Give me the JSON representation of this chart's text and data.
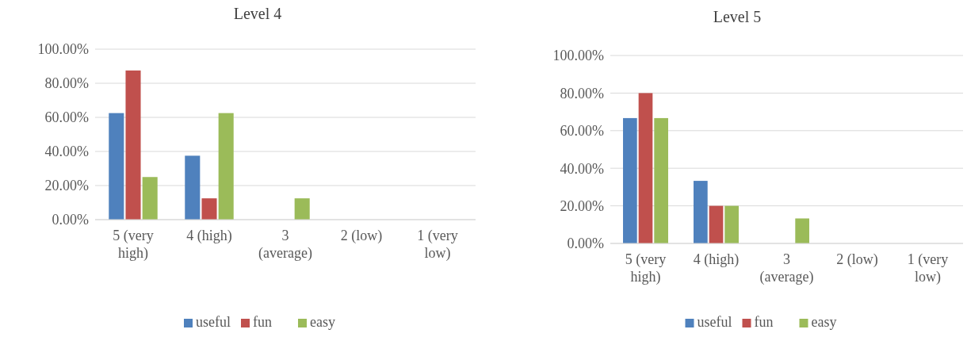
{
  "chart_data": [
    {
      "type": "bar",
      "title": "Level 4",
      "categories": [
        "5 (very high)",
        "4 (high)",
        "3 (average)",
        "2 (low)",
        "1 (very low)"
      ],
      "series": [
        {
          "name": "useful",
          "color": "#4f81bd",
          "values": [
            62.5,
            37.5,
            0,
            0,
            0
          ]
        },
        {
          "name": "fun",
          "color": "#c0504d",
          "values": [
            87.5,
            12.5,
            0,
            0,
            0
          ]
        },
        {
          "name": "easy",
          "color": "#9bbb59",
          "values": [
            25,
            62.5,
            12.5,
            0,
            0
          ]
        }
      ],
      "ylim": [
        0,
        100
      ],
      "yticks": [
        {
          "value": 0,
          "label": "0.00%"
        },
        {
          "value": 20,
          "label": "20.00%"
        },
        {
          "value": 40,
          "label": "40.00%"
        },
        {
          "value": 60,
          "label": "60.00%"
        },
        {
          "value": 80,
          "label": "80.00%"
        },
        {
          "value": 100,
          "label": "100.00%"
        }
      ],
      "grid": "y",
      "legend": "bottom"
    },
    {
      "type": "bar",
      "title": "Level 5",
      "categories": [
        "5 (very high)",
        "4 (high)",
        "3 (average)",
        "2 (low)",
        "1 (very low)"
      ],
      "series": [
        {
          "name": "useful",
          "color": "#4f81bd",
          "values": [
            66.7,
            33.3,
            0,
            0,
            0
          ]
        },
        {
          "name": "fun",
          "color": "#c0504d",
          "values": [
            80,
            20,
            0,
            0,
            0
          ]
        },
        {
          "name": "easy",
          "color": "#9bbb59",
          "values": [
            66.7,
            20,
            13.3,
            0,
            0
          ]
        }
      ],
      "ylim": [
        0,
        100
      ],
      "yticks": [
        {
          "value": 0,
          "label": "0.00%"
        },
        {
          "value": 20,
          "label": "20.00%"
        },
        {
          "value": 40,
          "label": "40.00%"
        },
        {
          "value": 60,
          "label": "60.00%"
        },
        {
          "value": 80,
          "label": "80.00%"
        },
        {
          "value": 100,
          "label": "100.00%"
        }
      ],
      "grid": "y",
      "legend": "bottom"
    }
  ]
}
